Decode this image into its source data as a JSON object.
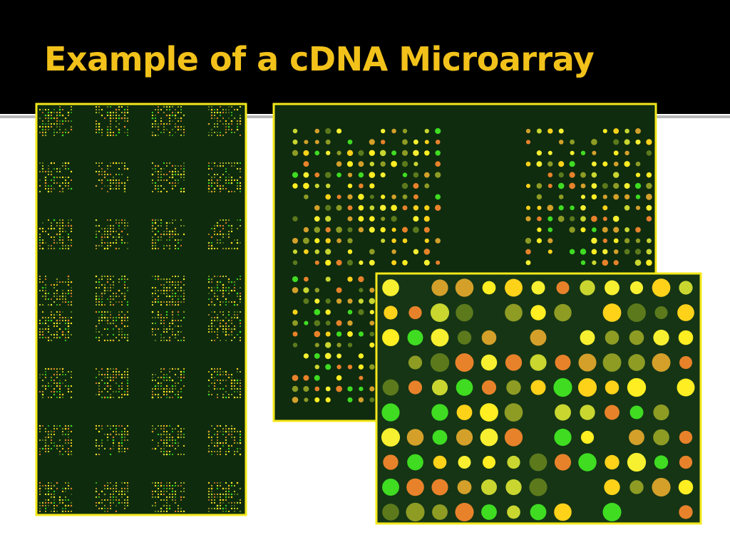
{
  "title": "Example of a cDNA Microarray"
}
